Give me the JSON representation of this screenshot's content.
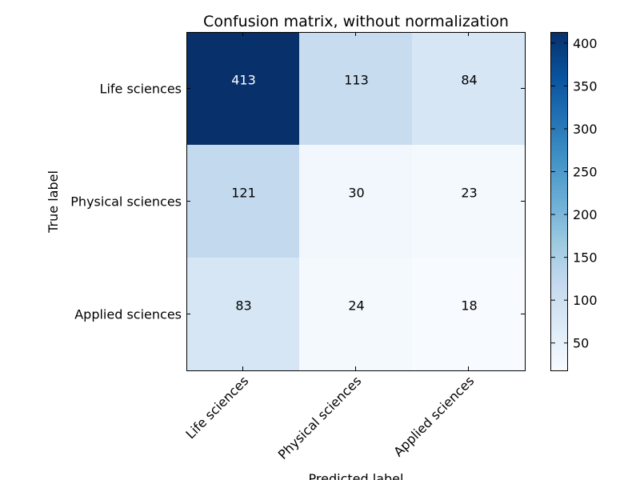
{
  "chart_data": {
    "type": "heatmap",
    "title": "Confusion matrix, without normalization",
    "xlabel": "Predicted label",
    "ylabel": "True label",
    "x_categories": [
      "Life sciences",
      "Physical sciences",
      "Applied sciences"
    ],
    "y_categories": [
      "Life sciences",
      "Physical sciences",
      "Applied sciences"
    ],
    "values": [
      [
        413,
        113,
        84
      ],
      [
        121,
        30,
        23
      ],
      [
        83,
        24,
        18
      ]
    ],
    "colormap": "Blues",
    "color_range": [
      18,
      413
    ],
    "colorbar_ticks": [
      50,
      100,
      150,
      200,
      250,
      300,
      350,
      400
    ],
    "text_threshold": 206.5,
    "grid": false
  }
}
